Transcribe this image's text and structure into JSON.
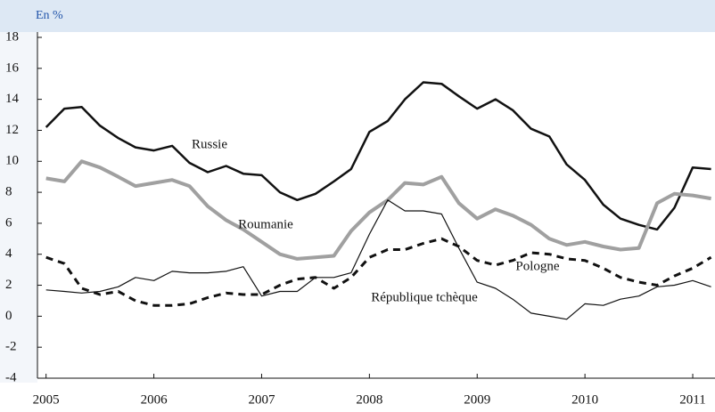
{
  "chart_data": {
    "type": "line",
    "title": "En %",
    "x": [
      2005,
      2005.17,
      2005.33,
      2005.5,
      2005.67,
      2005.83,
      2006,
      2006.17,
      2006.33,
      2006.5,
      2006.67,
      2006.83,
      2007,
      2007.17,
      2007.33,
      2007.5,
      2007.67,
      2007.83,
      2008,
      2008.17,
      2008.33,
      2008.5,
      2008.67,
      2008.83,
      2009,
      2009.17,
      2009.33,
      2009.5,
      2009.67,
      2009.83,
      2010,
      2010.17,
      2010.33,
      2010.5,
      2010.67,
      2010.83,
      2011,
      2011.17
    ],
    "series": [
      {
        "name": "Russie",
        "color": "#111111",
        "values": [
          12.2,
          13.4,
          13.5,
          12.3,
          11.5,
          10.9,
          10.7,
          11.0,
          9.9,
          9.3,
          9.7,
          9.2,
          9.1,
          8.0,
          7.5,
          7.9,
          8.7,
          9.5,
          11.9,
          12.6,
          14.0,
          15.1,
          15.0,
          14.2,
          13.4,
          14.0,
          13.3,
          12.1,
          11.6,
          9.8,
          8.8,
          7.2,
          6.3,
          5.9,
          5.6,
          7.0,
          9.6,
          9.5
        ]
      },
      {
        "name": "Roumanie",
        "color": "#a0a0a0",
        "values": [
          8.9,
          8.7,
          10.0,
          9.6,
          9.0,
          8.4,
          8.6,
          8.8,
          8.4,
          7.1,
          6.2,
          5.6,
          4.8,
          4.0,
          3.7,
          3.8,
          3.9,
          5.5,
          6.7,
          7.5,
          8.6,
          8.5,
          9.0,
          7.3,
          6.3,
          6.9,
          6.5,
          5.9,
          5.0,
          4.6,
          4.8,
          4.5,
          4.3,
          4.4,
          7.3,
          7.9,
          7.8,
          7.6
        ]
      },
      {
        "name": "Pologne",
        "color": "#111111",
        "dashed": true,
        "values": [
          3.8,
          3.4,
          1.8,
          1.4,
          1.6,
          1.0,
          0.7,
          0.7,
          0.8,
          1.2,
          1.5,
          1.4,
          1.4,
          2.0,
          2.4,
          2.5,
          1.8,
          2.5,
          3.8,
          4.3,
          4.3,
          4.7,
          5.0,
          4.5,
          3.6,
          3.3,
          3.6,
          4.1,
          4.0,
          3.7,
          3.6,
          3.1,
          2.5,
          2.2,
          2.0,
          2.6,
          3.1,
          3.8
        ]
      },
      {
        "name": "République tchèque",
        "color": "#111111",
        "thin": true,
        "values": [
          1.7,
          1.6,
          1.5,
          1.6,
          1.9,
          2.5,
          2.3,
          2.9,
          2.8,
          2.8,
          2.9,
          3.2,
          1.3,
          1.6,
          1.6,
          2.5,
          2.5,
          2.8,
          5.3,
          7.5,
          6.8,
          6.8,
          6.6,
          4.4,
          2.2,
          1.8,
          1.1,
          0.2,
          0.0,
          -0.2,
          0.8,
          0.7,
          1.1,
          1.3,
          1.9,
          2.0,
          2.3,
          1.9
        ]
      }
    ],
    "xlim": [
      2004.92,
      2011.19
    ],
    "xticks": [
      2005,
      2006,
      2007,
      2008,
      2009,
      2010,
      2011
    ],
    "ylim": [
      -4,
      18
    ],
    "yticks": [
      -4,
      -2,
      0,
      2,
      4,
      6,
      8,
      10,
      12,
      14,
      16,
      18
    ]
  }
}
